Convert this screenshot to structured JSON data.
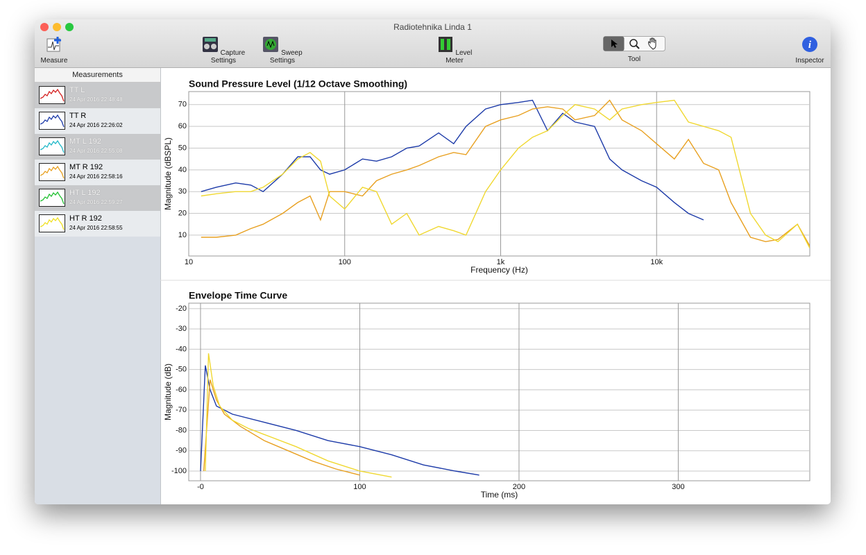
{
  "window": {
    "title": "Radiotehnika Linda 1"
  },
  "toolbar": {
    "items": [
      "Measure",
      "Capture Settings",
      "Sweep Settings",
      "Level Meter",
      "Tool",
      "Inspector"
    ]
  },
  "sidebar": {
    "header": "Measurements",
    "items": [
      {
        "name": "TT L",
        "date": "24 Apr 2016 22:48:48",
        "color": "#d42020"
      },
      {
        "name": "TT R",
        "date": "24 Apr 2016 22:26:02",
        "color": "#1c3aa8"
      },
      {
        "name": "MT L 192",
        "date": "24 Apr 2016 22:55:08",
        "color": "#20b8c8"
      },
      {
        "name": "MT R 192",
        "date": "24 Apr 2016 22:58:16",
        "color": "#e8a020"
      },
      {
        "name": "HT L 192",
        "date": "24 Apr 2016 22:59:27",
        "color": "#20c030"
      },
      {
        "name": "HT R 192",
        "date": "24 Apr 2016 22:58:55",
        "color": "#f0e020"
      }
    ]
  },
  "chart_data": [
    {
      "type": "line",
      "title": "Sound Pressure Level (1/12 Octave Smoothing)",
      "x_label": "Frequency (Hz)",
      "y_label": "Magnitude (dBSPL)",
      "x_scale": "log",
      "xlim": [
        10,
        96000
      ],
      "ylim": [
        0.4,
        76
      ],
      "xticks": [
        10,
        100,
        {
          "value": 1000,
          "label": "1k"
        },
        {
          "value": 10000,
          "label": "10k"
        }
      ],
      "yticks": [
        10,
        20,
        30,
        40,
        50,
        60,
        70
      ],
      "grid": true,
      "x": [
        12,
        15,
        20,
        25,
        30,
        40,
        50,
        60,
        70,
        80,
        100,
        130,
        160,
        200,
        250,
        300,
        400,
        500,
        600,
        800,
        1000,
        1300,
        1600,
        2000,
        2500,
        3000,
        4000,
        5000,
        6000,
        8000,
        10000,
        13000,
        16000,
        20000,
        25000,
        30000,
        40000,
        50000,
        60000,
        80000,
        96000
      ],
      "series": [
        {
          "color": "#1c3aa8",
          "values": [
            30,
            32,
            34,
            33,
            30,
            38,
            46,
            46,
            40,
            38,
            40,
            45,
            44,
            46,
            50,
            51,
            57,
            52,
            60,
            68,
            70,
            71,
            72,
            58,
            66,
            62,
            60,
            45,
            40,
            35,
            32,
            25,
            20,
            17,
            null,
            null,
            null,
            null,
            null,
            null,
            null
          ]
        },
        {
          "color": "#e8a020",
          "values": [
            9,
            9,
            10,
            13,
            15,
            20,
            25,
            28,
            17,
            30,
            30,
            28,
            35,
            38,
            40,
            42,
            46,
            48,
            47,
            60,
            63,
            65,
            68,
            69,
            68,
            63,
            65,
            72,
            63,
            58,
            52,
            45,
            54,
            43,
            40,
            25,
            9,
            7,
            8,
            15,
            5
          ]
        },
        {
          "color": "#f0d830",
          "values": [
            28,
            29,
            30,
            30,
            32,
            38,
            45,
            48,
            44,
            28,
            22,
            32,
            30,
            15,
            20,
            10,
            14,
            12,
            10,
            30,
            40,
            50,
            55,
            58,
            65,
            70,
            68,
            63,
            68,
            70,
            71,
            72,
            62,
            60,
            58,
            55,
            20,
            10,
            7,
            15,
            4
          ]
        }
      ]
    },
    {
      "type": "line",
      "title": "Envelope Time Curve",
      "x_label": "Time (ms)",
      "y_label": "Magnitude (dB)",
      "xlim": [
        -7.4,
        382.6
      ],
      "ylim": [
        -104.8,
        -17.3
      ],
      "xticks": [
        {
          "value": 0,
          "label": "-0"
        },
        100,
        200,
        300
      ],
      "yticks": [
        -20,
        -30,
        -40,
        -50,
        -60,
        -70,
        -80,
        -90,
        -100
      ],
      "grid": true,
      "series": [
        {
          "color": "#1c3aa8",
          "x": [
            0,
            3,
            6,
            10,
            20,
            40,
            60,
            80,
            100,
            120,
            140,
            160,
            175
          ],
          "values": [
            -100,
            -48,
            -60,
            -68,
            -72,
            -76,
            -80,
            -85,
            -88,
            -92,
            -97,
            -100,
            -102
          ]
        },
        {
          "color": "#e8a020",
          "x": [
            2,
            6,
            10,
            15,
            25,
            40,
            55,
            70,
            85,
            100
          ],
          "values": [
            -100,
            -55,
            -65,
            -72,
            -78,
            -85,
            -90,
            -95,
            -99,
            -102
          ]
        },
        {
          "color": "#f0d830",
          "x": [
            3,
            5,
            8,
            12,
            20,
            30,
            40,
            60,
            80,
            100,
            120
          ],
          "values": [
            -100,
            -42,
            -58,
            -68,
            -75,
            -79,
            -82,
            -88,
            -95,
            -100,
            -103
          ]
        }
      ]
    }
  ]
}
